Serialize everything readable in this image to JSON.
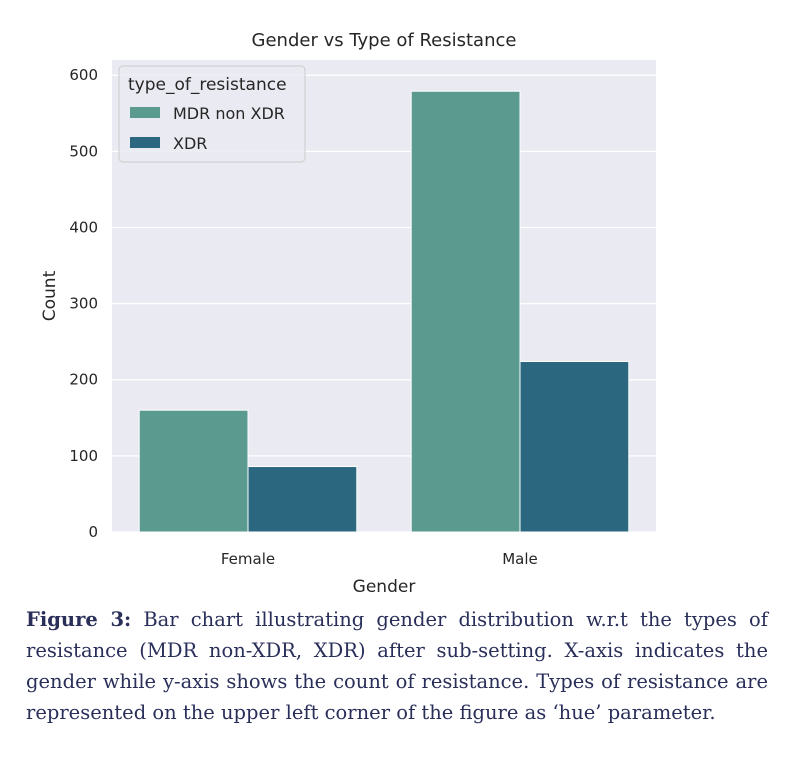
{
  "chart_data": {
    "type": "bar",
    "title": "Gender vs Type of Resistance",
    "xlabel": "Gender",
    "ylabel": "Count",
    "categories": [
      "Female",
      "Male"
    ],
    "series": [
      {
        "name": "MDR non XDR",
        "values": [
          160,
          579
        ],
        "color": "#5a9a8f"
      },
      {
        "name": "XDR",
        "values": [
          86,
          224
        ],
        "color": "#2b687f"
      }
    ],
    "ylim": [
      0,
      620
    ],
    "yticks": [
      0,
      100,
      200,
      300,
      400,
      500,
      600
    ],
    "legend": {
      "title": "type_of_resistance",
      "position": "upper-left"
    },
    "grid": true
  },
  "caption": {
    "label": "Figure 3:",
    "text": "Bar chart illustrating gender distribution w.r.t the types of resistance (MDR non-XDR, XDR) after sub-setting. X-axis indicates the gender while y-axis shows the count of resistance. Types of resistance are represented on the upper left corner of the figure as ‘hue’ parameter."
  }
}
